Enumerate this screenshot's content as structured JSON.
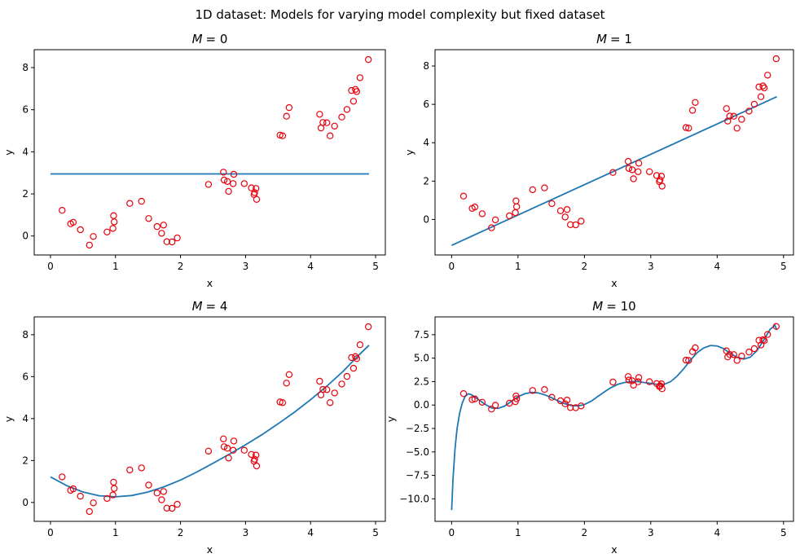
{
  "figure": {
    "suptitle": "1D dataset: Models for varying model complexity but fixed dataset"
  },
  "colors": {
    "fit_line": "#1f77b4",
    "data_points": "#e8000b"
  },
  "points_x": [
    0.18,
    0.31,
    0.35,
    0.46,
    0.6,
    0.66,
    0.87,
    0.96,
    0.97,
    0.98,
    1.22,
    1.4,
    1.51,
    1.64,
    1.71,
    1.74,
    1.79,
    1.87,
    1.95,
    2.43,
    2.66,
    2.67,
    2.72,
    2.74,
    2.81,
    2.82,
    2.98,
    3.09,
    3.13,
    3.14,
    3.16,
    3.17,
    3.53,
    3.57,
    3.63,
    3.67,
    4.14,
    4.16,
    4.19,
    4.25,
    4.3,
    4.37,
    4.48,
    4.56,
    4.63,
    4.66,
    4.69,
    4.71,
    4.76,
    4.89
  ],
  "points_y": [
    1.22,
    0.58,
    0.65,
    0.3,
    -0.43,
    -0.02,
    0.19,
    0.36,
    0.97,
    0.67,
    1.55,
    1.65,
    0.83,
    0.45,
    0.13,
    0.52,
    -0.27,
    -0.28,
    -0.09,
    2.45,
    3.03,
    2.66,
    2.59,
    2.12,
    2.49,
    2.93,
    2.49,
    2.29,
    1.97,
    2.06,
    2.26,
    1.74,
    4.79,
    4.76,
    5.69,
    6.1,
    5.78,
    5.13,
    5.39,
    5.38,
    4.76,
    5.22,
    5.65,
    6.01,
    6.91,
    6.4,
    6.96,
    6.86,
    7.52,
    8.38
  ],
  "chart_data": [
    {
      "type": "line",
      "title": "M = 0",
      "title_var": "M",
      "title_val": "= 0",
      "xlabel": "x",
      "ylabel": "y",
      "xlim": [
        -0.25,
        5.15
      ],
      "ylim": [
        -0.9,
        8.85
      ],
      "xticks": [
        "0",
        "1",
        "2",
        "3",
        "4",
        "5"
      ],
      "yticks": [
        "0",
        "2",
        "4",
        "6",
        "8"
      ],
      "grid": false,
      "fit": {
        "x": [
          0,
          4.9
        ],
        "y": [
          2.95,
          2.95
        ]
      }
    },
    {
      "type": "line",
      "title": "M = 1",
      "title_var": "M",
      "title_val": "= 1",
      "xlabel": "x",
      "ylabel": "y",
      "xlim": [
        -0.25,
        5.15
      ],
      "ylim": [
        -1.85,
        8.85
      ],
      "xticks": [
        "0",
        "1",
        "2",
        "3",
        "4",
        "5"
      ],
      "yticks": [
        "0",
        "2",
        "4",
        "6",
        "8"
      ],
      "grid": false,
      "fit": {
        "x": [
          0,
          4.9
        ],
        "y": [
          -1.35,
          6.4
        ]
      }
    },
    {
      "type": "line",
      "title": "M = 4",
      "title_var": "M",
      "title_val": "= 4",
      "xlabel": "x",
      "ylabel": "y",
      "xlim": [
        -0.25,
        5.15
      ],
      "ylim": [
        -0.9,
        8.85
      ],
      "xticks": [
        "0",
        "1",
        "2",
        "3",
        "4",
        "5"
      ],
      "yticks": [
        "0",
        "2",
        "4",
        "6",
        "8"
      ],
      "grid": false,
      "fit": {
        "x": [
          0,
          0.25,
          0.5,
          0.75,
          1.0,
          1.25,
          1.5,
          1.75,
          2.0,
          2.25,
          2.5,
          2.75,
          3.0,
          3.25,
          3.5,
          3.75,
          4.0,
          4.25,
          4.5,
          4.75,
          4.9
        ],
        "y": [
          1.22,
          0.8,
          0.5,
          0.32,
          0.27,
          0.33,
          0.5,
          0.75,
          1.07,
          1.45,
          1.87,
          2.3,
          2.75,
          3.23,
          3.75,
          4.3,
          4.9,
          5.55,
          6.25,
          7.05,
          7.5
        ]
      }
    },
    {
      "type": "line",
      "title": "M = 10",
      "title_var": "M",
      "title_val": "= 10",
      "xlabel": "x",
      "ylabel": "y",
      "xlim": [
        -0.25,
        5.15
      ],
      "ylim": [
        -12.4,
        9.4
      ],
      "xticks": [
        "0",
        "1",
        "2",
        "3",
        "4",
        "5"
      ],
      "yticks": [
        "−10.0",
        "−7.5",
        "−5.0",
        "−2.5",
        "0.0",
        "2.5",
        "5.0",
        "7.5"
      ],
      "grid": false,
      "fit": {
        "x": [
          0,
          0.02,
          0.05,
          0.08,
          0.12,
          0.16,
          0.2,
          0.25,
          0.3,
          0.4,
          0.5,
          0.6,
          0.7,
          0.8,
          0.9,
          1.0,
          1.1,
          1.2,
          1.3,
          1.4,
          1.5,
          1.6,
          1.7,
          1.8,
          1.9,
          2.0,
          2.1,
          2.2,
          2.3,
          2.4,
          2.5,
          2.6,
          2.7,
          2.8,
          2.9,
          3.0,
          3.1,
          3.2,
          3.3,
          3.4,
          3.5,
          3.6,
          3.7,
          3.8,
          3.9,
          4.0,
          4.1,
          4.2,
          4.3,
          4.4,
          4.5,
          4.6,
          4.7,
          4.8,
          4.87,
          4.9
        ],
        "y": [
          -11.2,
          -8.0,
          -4.8,
          -2.6,
          -0.9,
          0.2,
          0.9,
          1.2,
          1.1,
          0.6,
          0.1,
          -0.3,
          -0.35,
          -0.1,
          0.4,
          0.9,
          1.2,
          1.35,
          1.3,
          1.1,
          0.8,
          0.45,
          0.15,
          -0.05,
          -0.1,
          0.05,
          0.4,
          0.9,
          1.4,
          1.85,
          2.2,
          2.4,
          2.5,
          2.5,
          2.4,
          2.3,
          2.2,
          2.2,
          2.5,
          3.1,
          3.9,
          4.8,
          5.6,
          6.1,
          6.35,
          6.3,
          6.0,
          5.5,
          5.1,
          4.9,
          5.1,
          5.8,
          6.9,
          8.1,
          8.5,
          8.0
        ]
      }
    }
  ]
}
